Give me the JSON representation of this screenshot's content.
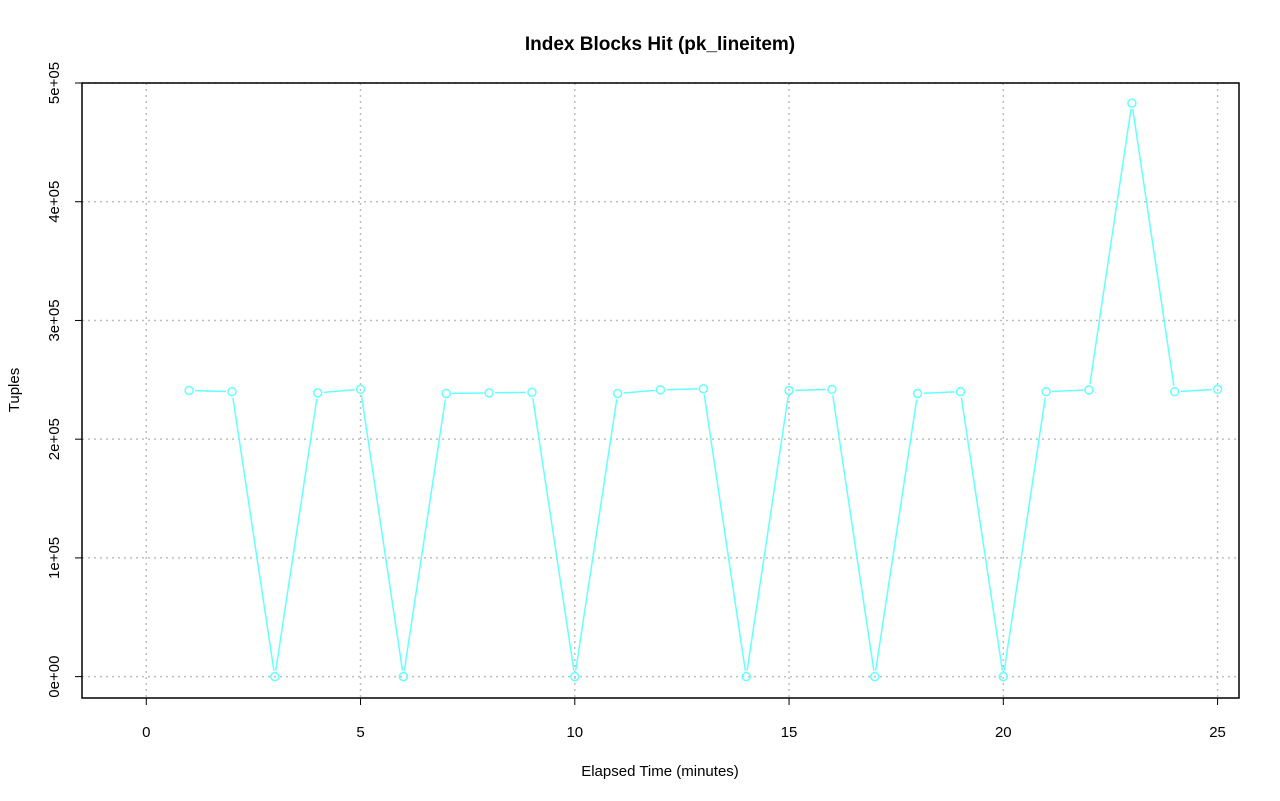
{
  "chart_data": {
    "type": "line",
    "title": "Index Blocks Hit (pk_lineitem)",
    "xlabel": "Elapsed Time (minutes)",
    "ylabel": "Tuples",
    "xlim": [
      -1.5,
      25.5
    ],
    "ylim": [
      -18000,
      500000
    ],
    "x_ticks": [
      0,
      5,
      10,
      15,
      20,
      25
    ],
    "x_tick_labels": [
      "0",
      "5",
      "10",
      "15",
      "20",
      "25"
    ],
    "y_ticks": [
      0,
      100000,
      200000,
      300000,
      400000,
      500000
    ],
    "y_tick_labels": [
      "0e+00",
      "1e+05",
      "2e+05",
      "3e+05",
      "4e+05",
      "5e+05"
    ],
    "grid": true,
    "series": [
      {
        "color": "#66ffff",
        "marker": "open-circle",
        "x": [
          1,
          2,
          3,
          4,
          5,
          6,
          7,
          8,
          9,
          10,
          11,
          12,
          13,
          14,
          15,
          16,
          17,
          18,
          19,
          20,
          21,
          22,
          23,
          24,
          25
        ],
        "values": [
          241000,
          240000,
          0,
          239000,
          242000,
          0,
          238500,
          239000,
          239500,
          0,
          238500,
          241500,
          242500,
          0,
          241000,
          242000,
          0,
          238500,
          240000,
          0,
          240000,
          241500,
          483000,
          240000,
          242000
        ]
      }
    ]
  }
}
